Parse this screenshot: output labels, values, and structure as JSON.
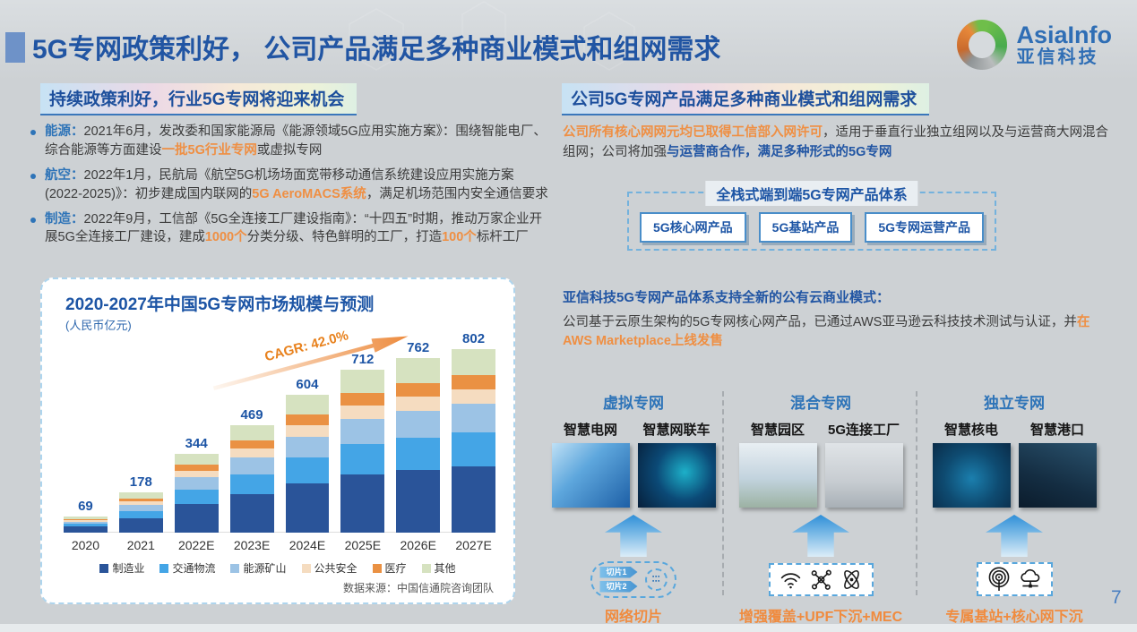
{
  "slide": {
    "title": "5G专网政策利好， 公司产品满足多种商业模式和组网需求",
    "page_number": "7",
    "logo": {
      "brand": "AsiaInfo",
      "brand_cn": "亚信科技"
    }
  },
  "left": {
    "section_title": "持续政策利好，行业5G专网将迎来机会",
    "bullets": [
      {
        "lead": "能源：",
        "t1": "2021年6月，发改委和国家能源局《能源领域5G应用实施方案》：围绕智能电厂、综合能源等方面建设",
        "hl1": "一批5G行业专网",
        "t2": "或虚拟专网"
      },
      {
        "lead": "航空：",
        "t1": "2022年1月，民航局《航空5G机场场面宽带移动通信系统建设应用实施方案(2022-2025)》：初步建成国内联网的",
        "hl1": "5G AeroMACS系统",
        "t2": "，满足机场范围内安全通信要求"
      },
      {
        "lead": "制造：",
        "t1": "2022年9月，工信部《5G全连接工厂建设指南》：“十四五”时期，推动万家企业开展5G全连接工厂建设，建成",
        "hl1": "1000个",
        "t2": "分类分级、特色鲜明的工厂，打造",
        "hl2": "100个",
        "t3": "标杆工厂"
      }
    ]
  },
  "chart_data": {
    "type": "bar",
    "stacked": true,
    "title": "2020-2027年中国5G专网市场规模与预测",
    "unit_label": "(人民币亿元)",
    "cagr_label": "CAGR: 42.0%",
    "categories": [
      "2020",
      "2021",
      "2022E",
      "2023E",
      "2024E",
      "2025E",
      "2026E",
      "2027E"
    ],
    "totals": [
      69,
      178,
      344,
      469,
      604,
      712,
      762,
      802
    ],
    "series": [
      {
        "name": "制造业",
        "color": "#2a5499",
        "values": [
          25,
          64,
          124,
          169,
          217,
          256,
          274,
          290
        ]
      },
      {
        "name": "交通物流",
        "color": "#44a5e6",
        "values": [
          13,
          33,
          64,
          87,
          112,
          132,
          142,
          149
        ]
      },
      {
        "name": "能源矿山",
        "color": "#9cc3e5",
        "values": [
          10,
          27,
          53,
          72,
          92,
          109,
          117,
          123
        ]
      },
      {
        "name": "公共安全",
        "color": "#f5dcc0",
        "values": [
          6,
          14,
          28,
          38,
          48,
          57,
          61,
          64
        ]
      },
      {
        "name": "医疗",
        "color": "#ea9143",
        "values": [
          5,
          14,
          27,
          37,
          48,
          56,
          60,
          63
        ]
      },
      {
        "name": "其他",
        "color": "#d6e2c0",
        "values": [
          10,
          26,
          48,
          66,
          87,
          102,
          108,
          113
        ]
      }
    ],
    "ylim": [
      0,
      850
    ],
    "grid": false,
    "legend_position": "bottom",
    "source": "数据来源：中国信通院咨询团队"
  },
  "right": {
    "section_title": "公司5G专网产品满足多种商业模式和组网需求",
    "intro": {
      "hl1": "公司所有核心网网元均已取得工信部入网许可",
      "t1": "，适用于垂直行业独立组网以及与运营商大网混合组网；公司将加强",
      "hl2": "与运营商合作，满足多种形式的5G专网"
    },
    "product_system": {
      "title": "全栈式端到端5G专网产品体系",
      "products": [
        "5G核心网产品",
        "5G基站产品",
        "5G专网运营产品"
      ]
    },
    "cloud_model": {
      "headline": "亚信科技5G专网产品体系支持全新的公有云商业模式：",
      "t1": "公司基于云原生架构的5G专网核心网产品，已通过AWS亚马逊云科技技术测试与认证，",
      "t2": "并",
      "hl1": "在AWS Marketplace上线发售"
    },
    "network_types": [
      {
        "title": "虚拟专网",
        "cases": [
          "智慧电网",
          "智慧网联车"
        ],
        "slices": [
          "切片1",
          "切片2"
        ],
        "icons": [
          "network-slice-icon"
        ],
        "bottom_label": "网络切片"
      },
      {
        "title": "混合专网",
        "cases": [
          "智慧园区",
          "5G连接工厂"
        ],
        "icons": [
          "wifi-icon",
          "molecule-icon",
          "atom-icon"
        ],
        "bottom_label": "增强覆盖+UPF下沉+MEC"
      },
      {
        "title": "独立专网",
        "cases": [
          "智慧核电",
          "智慧港口"
        ],
        "icons": [
          "broadcast-icon",
          "cloud-network-icon"
        ],
        "bottom_label": "专属基站+核心网下沉"
      }
    ]
  },
  "colors": {
    "title_blue": "#2155a3",
    "accent_orange": "#ef8f43",
    "body_text": "#3b3b3b",
    "background": "#cdd1d4"
  }
}
